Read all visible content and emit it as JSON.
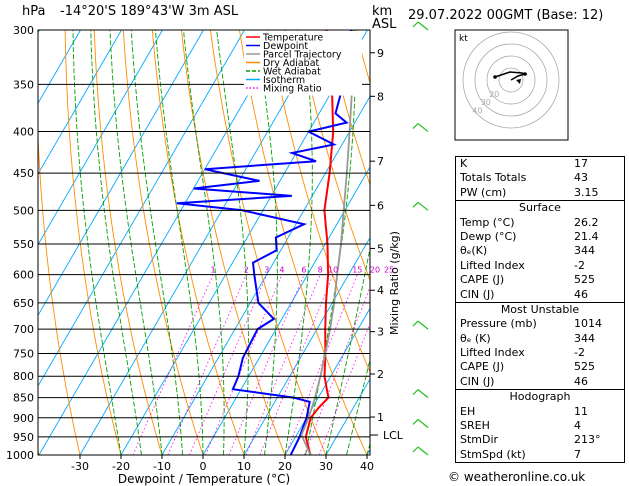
{
  "header": {
    "pressure_unit": "hPa",
    "location": "-14°20'S  189°43'W  3m  ASL",
    "height_unit": "km",
    "height_ref": "ASL",
    "datetime": "29.07.2022  00GMT  (Base: 12)"
  },
  "chart_data": {
    "type": "line",
    "title": "",
    "xlabel": "Dewpoint / Temperature (°C)",
    "ylabel": "",
    "mixing_ratio_label": "Mixing Ratio (g/kg)",
    "xlim": [
      -35,
      40
    ],
    "x_ticks": [
      "-30",
      "-20",
      "-10",
      "0",
      "10",
      "20",
      "30",
      "40"
    ],
    "pressure_levels": [
      "300",
      "350",
      "400",
      "450",
      "500",
      "550",
      "600",
      "650",
      "700",
      "750",
      "800",
      "850",
      "900",
      "950",
      "1000"
    ],
    "km_ticks": [
      {
        "km": "1",
        "p": 898
      },
      {
        "km": "2",
        "p": 795
      },
      {
        "km": "3",
        "p": 705
      },
      {
        "km": "4",
        "p": 627
      },
      {
        "km": "5",
        "p": 557
      },
      {
        "km": "6",
        "p": 493
      },
      {
        "km": "7",
        "p": 435
      },
      {
        "km": "8",
        "p": 362
      },
      {
        "km": "9",
        "p": 320
      }
    ],
    "lcl_label": "LCL",
    "lcl_p": 945,
    "mixing_ratio_ticks": [
      "1",
      "2",
      "3",
      "4",
      "6",
      "8",
      "10",
      "15",
      "20",
      "25"
    ],
    "legend": {
      "position": "top-left",
      "entries": [
        {
          "name": "Temperature",
          "color": "#ff0000"
        },
        {
          "name": "Dewpoint",
          "color": "#0000ff"
        },
        {
          "name": "Parcel Trajectory",
          "color": "#999999"
        },
        {
          "name": "Dry Adiabat",
          "color": "#ff8c00"
        },
        {
          "name": "Wet Adiabat",
          "color": "#00a000"
        },
        {
          "name": "Isotherm",
          "color": "#00aaff"
        },
        {
          "name": "Mixing Ratio",
          "color": "#ff00ff"
        }
      ]
    },
    "series": [
      {
        "name": "Temperature",
        "color": "#ff0000",
        "points": [
          [
            1000,
            26.2
          ],
          [
            950,
            22.5
          ],
          [
            900,
            21.0
          ],
          [
            875,
            21.5
          ],
          [
            850,
            22.5
          ],
          [
            825,
            20.5
          ],
          [
            800,
            18.5
          ],
          [
            750,
            15.5
          ],
          [
            700,
            12.0
          ],
          [
            650,
            8.5
          ],
          [
            600,
            5.0
          ],
          [
            550,
            0.5
          ],
          [
            500,
            -5.0
          ],
          [
            450,
            -9.0
          ],
          [
            400,
            -14.0
          ],
          [
            350,
            -21.0
          ],
          [
            320,
            -26.0
          ],
          [
            300,
            -30.0
          ]
        ]
      },
      {
        "name": "Dewpoint",
        "color": "#0000ff",
        "points": [
          [
            1000,
            21.4
          ],
          [
            950,
            21.0
          ],
          [
            900,
            20.0
          ],
          [
            860,
            18.5
          ],
          [
            850,
            14.0
          ],
          [
            830,
            -2.0
          ],
          [
            800,
            -2.5
          ],
          [
            760,
            -4.0
          ],
          [
            700,
            -4.5
          ],
          [
            680,
            -2.0
          ],
          [
            650,
            -8.0
          ],
          [
            600,
            -13.0
          ],
          [
            580,
            -15.0
          ],
          [
            560,
            -11.0
          ],
          [
            540,
            -13.0
          ],
          [
            520,
            -8.0
          ],
          [
            500,
            -25.0
          ],
          [
            490,
            -42.0
          ],
          [
            480,
            -15.0
          ],
          [
            470,
            -40.0
          ],
          [
            460,
            -25.0
          ],
          [
            445,
            -40.0
          ],
          [
            435,
            -14.0
          ],
          [
            425,
            -21.0
          ],
          [
            415,
            -12.0
          ],
          [
            400,
            -20.0
          ],
          [
            390,
            -12.0
          ],
          [
            380,
            -16.0
          ],
          [
            340,
            -19.0
          ],
          [
            310,
            -22.0
          ],
          [
            300,
            -24.0
          ]
        ]
      },
      {
        "name": "Parcel Trajectory",
        "color": "#999999",
        "points": [
          [
            1000,
            26.2
          ],
          [
            945,
            21.2
          ],
          [
            900,
            20.5
          ],
          [
            850,
            19.2
          ],
          [
            800,
            17.5
          ],
          [
            750,
            15.5
          ],
          [
            700,
            13.2
          ],
          [
            650,
            10.5
          ],
          [
            600,
            7.2
          ],
          [
            550,
            3.8
          ],
          [
            500,
            -0.3
          ],
          [
            450,
            -4.8
          ],
          [
            400,
            -10.0
          ],
          [
            350,
            -16.0
          ],
          [
            300,
            -23.5
          ]
        ]
      }
    ]
  },
  "hodograph": {
    "label": "kt",
    "ring_labels": [
      "20",
      "30",
      "40"
    ]
  },
  "indices": [
    {
      "label": "K",
      "value": "17"
    },
    {
      "label": "Totals Totals",
      "value": "43"
    },
    {
      "label": "PW (cm)",
      "value": "3.15"
    }
  ],
  "surface": {
    "title": "Surface",
    "rows": [
      {
        "label": "Temp (°C)",
        "value": "26.2"
      },
      {
        "label": "Dewp (°C)",
        "value": "21.4"
      },
      {
        "label": "θₑ(K)",
        "value": "344"
      },
      {
        "label": "Lifted Index",
        "value": "-2"
      },
      {
        "label": "CAPE (J)",
        "value": "525"
      },
      {
        "label": "CIN (J)",
        "value": "46"
      }
    ]
  },
  "most_unstable": {
    "title": "Most Unstable",
    "rows": [
      {
        "label": "Pressure (mb)",
        "value": "1014"
      },
      {
        "label": "θₑ (K)",
        "value": "344"
      },
      {
        "label": "Lifted Index",
        "value": "-2"
      },
      {
        "label": "CAPE (J)",
        "value": "525"
      },
      {
        "label": "CIN (J)",
        "value": "46"
      }
    ]
  },
  "hodo_table": {
    "title": "Hodograph",
    "rows": [
      {
        "label": "EH",
        "value": "11"
      },
      {
        "label": "SREH",
        "value": "4"
      },
      {
        "label": "StmDir",
        "value": "213°"
      },
      {
        "label": "StmSpd (kt)",
        "value": "7"
      }
    ]
  },
  "footer": "© weatheronline.co.uk"
}
